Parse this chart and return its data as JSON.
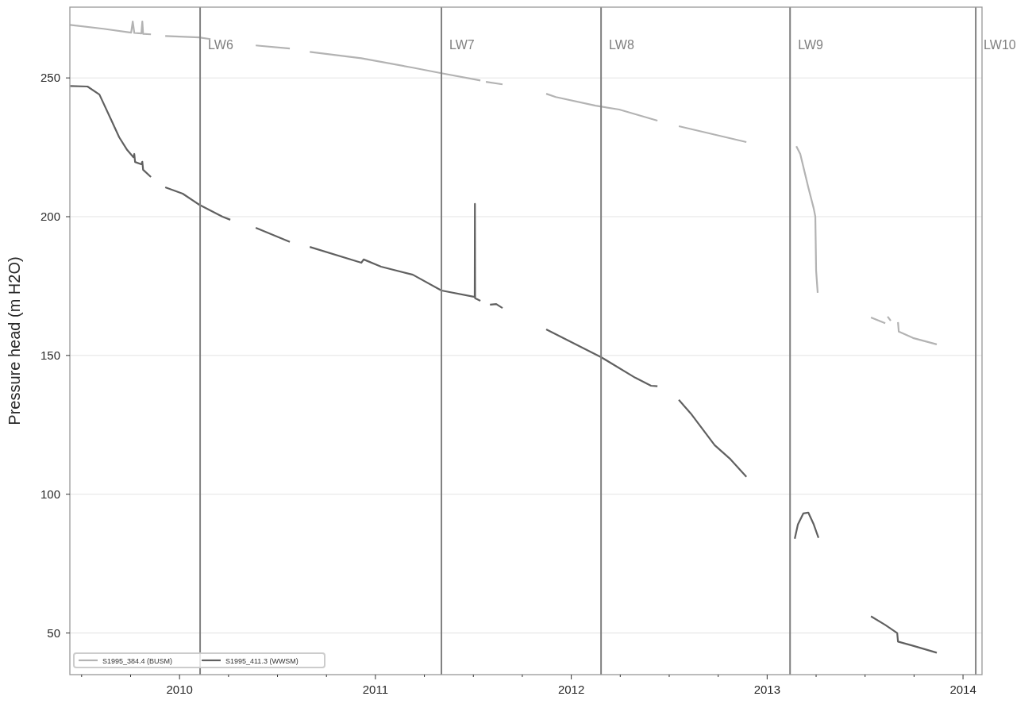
{
  "chart_data": {
    "type": "line",
    "ylabel": "Pressure head (m H2O)",
    "xlim": [
      2009.44,
      2014.097
    ],
    "ylim": [
      35,
      275.5
    ],
    "xticks": [
      {
        "value": 2009.5,
        "label": null
      },
      {
        "value": 2009.75,
        "label": null
      },
      2010,
      {
        "value": 2010.25,
        "label": null
      },
      {
        "value": 2010.5,
        "label": null
      },
      {
        "value": 2010.75,
        "label": null
      },
      2011,
      {
        "value": 2011.25,
        "label": null
      },
      {
        "value": 2011.5,
        "label": null
      },
      {
        "value": 2011.75,
        "label": null
      },
      2012,
      {
        "value": 2012.25,
        "label": null
      },
      {
        "value": 2012.5,
        "label": null
      },
      {
        "value": 2012.75,
        "label": null
      },
      2013,
      {
        "value": 2013.25,
        "label": null
      },
      {
        "value": 2013.5,
        "label": null
      },
      {
        "value": 2013.75,
        "label": null
      },
      2014
    ],
    "yticks": [
      50,
      100,
      150,
      200,
      250
    ],
    "grid": "y",
    "legend": "bottom left",
    "line_style": "solid",
    "marker": "none",
    "ref_lines": [
      {
        "axis": "x",
        "value": 2010.105,
        "label": "LW6",
        "color": "#808080"
      },
      {
        "axis": "x",
        "value": 2011.337,
        "label": "LW7",
        "color": "#808080"
      },
      {
        "axis": "x",
        "value": 2012.152,
        "label": "LW8",
        "color": "#808080"
      },
      {
        "axis": "x",
        "value": 2013.117,
        "label": "LW9",
        "color": "#808080"
      },
      {
        "axis": "x",
        "value": 2014.065,
        "label": "LW10",
        "color": "#808080"
      }
    ],
    "series": [
      {
        "name": "S1995_384.4 (BUSM)",
        "color": "#b3b3b3",
        "x": [
          2009.441,
          2009.611,
          2009.753,
          2009.761,
          2009.769,
          2009.805,
          2009.81,
          2009.814,
          2009.854,
          2009.89,
          2009.927,
          2010.101,
          2010.158,
          2010.27,
          2010.389,
          2010.563,
          2010.61,
          2010.665,
          2010.928,
          2011.191,
          2011.337,
          2011.536,
          2011.55,
          2011.564,
          2011.649,
          2011.76,
          2011.872,
          2011.921,
          2012.124,
          2012.245,
          2012.44,
          2012.49,
          2012.549,
          2012.894,
          2013.02,
          2013.149,
          2013.169,
          2013.21,
          2013.238,
          2013.246,
          2013.25,
          2013.258,
          2013.4,
          2013.53,
          2013.603,
          2013.61,
          2013.615,
          2013.631,
          2013.65,
          2013.668,
          2013.672,
          2013.745,
          2013.866
        ],
        "values": [
          269.1,
          267.7,
          266.3,
          270.3,
          266.2,
          266.0,
          270.3,
          265.9,
          265.7,
          null,
          265.1,
          264.6,
          264.0,
          null,
          261.7,
          260.6,
          null,
          259.4,
          257.1,
          253.7,
          251.7,
          249.1,
          null,
          248.6,
          247.7,
          null,
          244.3,
          243.1,
          240.0,
          238.6,
          234.6,
          null,
          232.6,
          226.9,
          null,
          225.4,
          222.6,
          210.6,
          202.9,
          200.0,
          180.6,
          172.6,
          null,
          163.7,
          161.6,
          null,
          164.0,
          162.5,
          null,
          162.0,
          158.6,
          156.3,
          154.0
        ]
      },
      {
        "name": "S1995_411.3 (WWSM)",
        "color": "#606060",
        "x": [
          2009.441,
          2009.53,
          2009.591,
          2009.651,
          2009.692,
          2009.733,
          2009.765,
          2009.769,
          2009.773,
          2009.805,
          2009.81,
          2009.814,
          2009.854,
          2009.89,
          2009.927,
          2010.016,
          2010.101,
          2010.219,
          2010.259,
          2010.32,
          2010.389,
          2010.563,
          2010.61,
          2010.665,
          2010.928,
          2010.94,
          2011.029,
          2011.191,
          2011.337,
          2011.507,
          2011.508,
          2011.509,
          2011.536,
          2011.55,
          2011.585,
          2011.617,
          2011.649,
          2011.76,
          2011.872,
          2012.152,
          2012.326,
          2012.407,
          2012.44,
          2012.49,
          2012.549,
          2012.61,
          2012.732,
          2012.813,
          2012.894,
          2013.02,
          2013.141,
          2013.157,
          2013.185,
          2013.21,
          2013.238,
          2013.262,
          2013.4,
          2013.53,
          2013.603,
          2013.664,
          2013.668,
          2013.745,
          2013.866
        ],
        "values": [
          247.1,
          246.9,
          244.0,
          234.9,
          228.6,
          224.0,
          221.4,
          222.6,
          219.7,
          218.9,
          219.8,
          216.9,
          214.3,
          null,
          210.6,
          208.3,
          204.3,
          200.0,
          198.9,
          null,
          196.0,
          190.9,
          null,
          189.1,
          183.4,
          184.6,
          182.0,
          179.1,
          173.4,
          171.1,
          204.6,
          170.6,
          169.7,
          null,
          168.3,
          168.5,
          167.1,
          null,
          159.4,
          149.4,
          142.0,
          139.1,
          138.9,
          null,
          134.0,
          129.1,
          117.7,
          112.6,
          106.3,
          null,
          84.0,
          89.1,
          93.1,
          93.4,
          89.1,
          84.3,
          null,
          56.0,
          52.9,
          50.0,
          46.9,
          45.4,
          42.9
        ]
      }
    ]
  }
}
